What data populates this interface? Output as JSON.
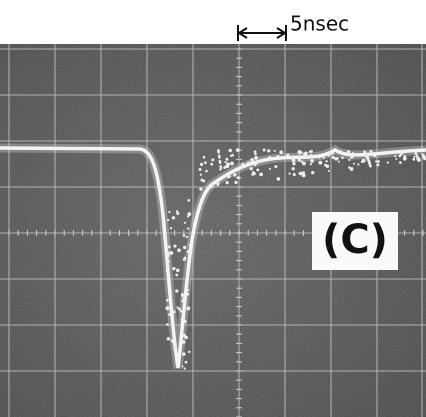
{
  "header": {
    "scale_label": "5nsec"
  },
  "panel_label": "(C)"
}
